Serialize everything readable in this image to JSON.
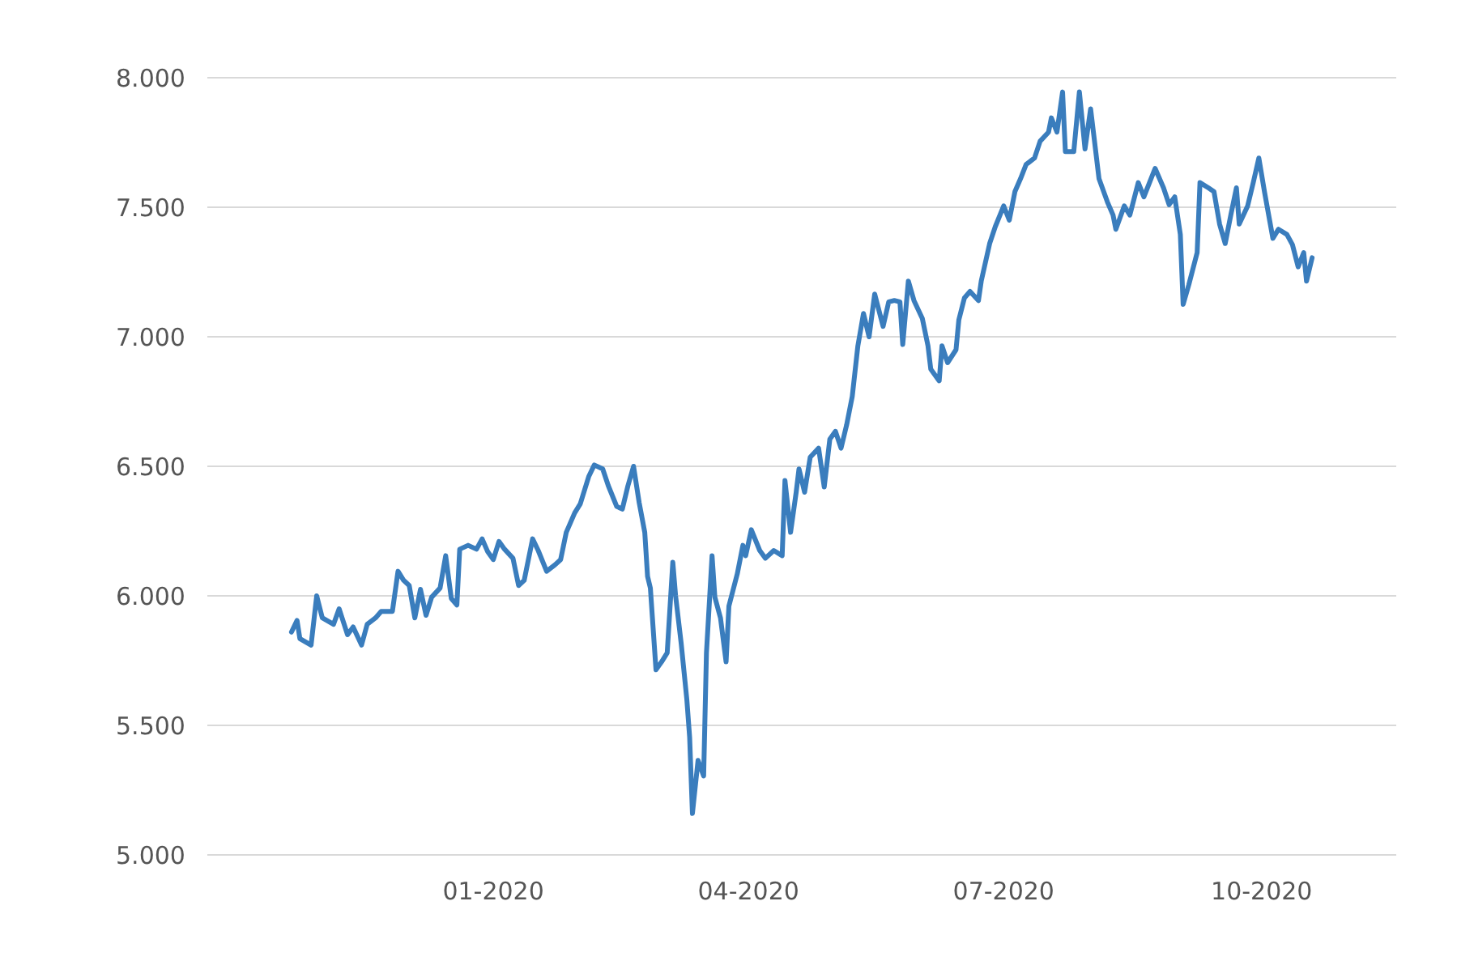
{
  "chart_data": {
    "type": "line",
    "x": [
      "2019-10-21",
      "2019-10-23",
      "2019-10-24",
      "2019-10-28",
      "2019-10-30",
      "2019-11-01",
      "2019-11-05",
      "2019-11-07",
      "2019-11-10",
      "2019-11-12",
      "2019-11-15",
      "2019-11-17",
      "2019-11-20",
      "2019-11-22",
      "2019-11-26",
      "2019-11-28",
      "2019-11-30",
      "2019-12-02",
      "2019-12-04",
      "2019-12-06",
      "2019-12-08",
      "2019-12-10",
      "2019-12-13",
      "2019-12-15",
      "2019-12-17",
      "2019-12-19",
      "2019-12-20",
      "2019-12-23",
      "2019-12-26",
      "2019-12-28",
      "2019-12-30",
      "2020-01-01",
      "2020-01-03",
      "2020-01-05",
      "2020-01-08",
      "2020-01-10",
      "2020-01-12",
      "2020-01-15",
      "2020-01-17",
      "2020-01-20",
      "2020-01-23",
      "2020-01-25",
      "2020-01-27",
      "2020-01-30",
      "2020-02-01",
      "2020-02-04",
      "2020-02-06",
      "2020-02-09",
      "2020-02-11",
      "2020-02-14",
      "2020-02-16",
      "2020-02-18",
      "2020-02-20",
      "2020-02-22",
      "2020-02-24",
      "2020-02-25",
      "2020-02-26",
      "2020-02-28",
      "2020-03-01",
      "2020-03-03",
      "2020-03-05",
      "2020-03-06",
      "2020-03-08",
      "2020-03-10",
      "2020-03-11",
      "2020-03-12",
      "2020-03-14",
      "2020-03-16",
      "2020-03-17",
      "2020-03-19",
      "2020-03-20",
      "2020-03-22",
      "2020-03-24",
      "2020-03-25",
      "2020-03-28",
      "2020-03-30",
      "2020-03-31",
      "2020-04-02",
      "2020-04-05",
      "2020-04-07",
      "2020-04-10",
      "2020-04-13",
      "2020-04-14",
      "2020-04-16",
      "2020-04-18",
      "2020-04-19",
      "2020-04-21",
      "2020-04-23",
      "2020-04-26",
      "2020-04-28",
      "2020-04-30",
      "2020-05-02",
      "2020-05-04",
      "2020-05-06",
      "2020-05-08",
      "2020-05-10",
      "2020-05-12",
      "2020-05-14",
      "2020-05-16",
      "2020-05-19",
      "2020-05-21",
      "2020-05-23",
      "2020-05-25",
      "2020-05-26",
      "2020-05-28",
      "2020-05-30",
      "2020-06-02",
      "2020-06-04",
      "2020-06-05",
      "2020-06-08",
      "2020-06-09",
      "2020-06-11",
      "2020-06-14",
      "2020-06-15",
      "2020-06-17",
      "2020-06-19",
      "2020-06-22",
      "2020-06-23",
      "2020-06-26",
      "2020-06-28",
      "2020-07-01",
      "2020-07-03",
      "2020-07-05",
      "2020-07-07",
      "2020-07-09",
      "2020-07-12",
      "2020-07-14",
      "2020-07-17",
      "2020-07-18",
      "2020-07-20",
      "2020-07-22",
      "2020-07-23",
      "2020-07-26",
      "2020-07-28",
      "2020-07-30",
      "2020-08-01",
      "2020-08-02",
      "2020-08-04",
      "2020-08-07",
      "2020-08-09",
      "2020-08-10",
      "2020-08-13",
      "2020-08-15",
      "2020-08-18",
      "2020-08-20",
      "2020-08-22",
      "2020-08-24",
      "2020-08-27",
      "2020-08-29",
      "2020-08-31",
      "2020-09-02",
      "2020-09-03",
      "2020-09-05",
      "2020-09-08",
      "2020-09-09",
      "2020-09-12",
      "2020-09-14",
      "2020-09-16",
      "2020-09-18",
      "2020-09-20",
      "2020-09-22",
      "2020-09-23",
      "2020-09-26",
      "2020-09-28",
      "2020-09-30",
      "2020-10-02",
      "2020-10-05",
      "2020-10-07",
      "2020-10-10",
      "2020-10-12",
      "2020-10-14",
      "2020-10-16",
      "2020-10-17",
      "2020-10-19"
    ],
    "series": [
      {
        "color": "#3a7dbd",
        "values": [
          5860,
          5905,
          5835,
          5810,
          6000,
          5915,
          5890,
          5950,
          5850,
          5880,
          5810,
          5890,
          5915,
          5940,
          5940,
          6095,
          6060,
          6040,
          5915,
          6025,
          5925,
          5995,
          6030,
          6155,
          5990,
          5965,
          6180,
          6195,
          6180,
          6220,
          6170,
          6140,
          6210,
          6180,
          6145,
          6040,
          6060,
          6220,
          6175,
          6095,
          6120,
          6140,
          6245,
          6320,
          6355,
          6460,
          6505,
          6490,
          6425,
          6345,
          6335,
          6425,
          6500,
          6360,
          6245,
          6075,
          6030,
          5715,
          5745,
          5780,
          6130,
          6000,
          5815,
          5600,
          5455,
          5160,
          5365,
          5305,
          5780,
          6155,
          5995,
          5915,
          5745,
          5960,
          6085,
          6195,
          6155,
          6255,
          6175,
          6145,
          6175,
          6155,
          6445,
          6245,
          6400,
          6490,
          6400,
          6535,
          6570,
          6420,
          6605,
          6635,
          6570,
          6660,
          6770,
          6965,
          7090,
          7000,
          7165,
          7040,
          7135,
          7140,
          7135,
          6970,
          7215,
          7140,
          7070,
          6965,
          6875,
          6830,
          6965,
          6900,
          6950,
          7065,
          7150,
          7175,
          7140,
          7215,
          7360,
          7425,
          7505,
          7450,
          7560,
          7610,
          7665,
          7690,
          7755,
          7790,
          7845,
          7790,
          7945,
          7715,
          7715,
          7945,
          7725,
          7880,
          7790,
          7610,
          7520,
          7470,
          7415,
          7505,
          7470,
          7595,
          7540,
          7595,
          7650,
          7575,
          7510,
          7540,
          7395,
          7125,
          7200,
          7325,
          7595,
          7575,
          7560,
          7435,
          7360,
          7470,
          7575,
          7435,
          7505,
          7595,
          7690,
          7560,
          7380,
          7415,
          7395,
          7355,
          7270,
          7325,
          7215,
          7305
        ]
      }
    ],
    "xlim": [
      "2019-09-21",
      "2020-11-18"
    ],
    "xticks": [
      {
        "value": "2020-01-01",
        "label": "01-2020"
      },
      {
        "value": "2020-04-01",
        "label": "04-2020"
      },
      {
        "value": "2020-07-01",
        "label": "07-2020"
      },
      {
        "value": "2020-10-01",
        "label": "10-2020"
      }
    ],
    "ylim": [
      5000,
      8000
    ],
    "yticks": [
      {
        "value": 5000,
        "label": "5.000"
      },
      {
        "value": 5500,
        "label": "5.500"
      },
      {
        "value": 6000,
        "label": "6.000"
      },
      {
        "value": 6500,
        "label": "6.500"
      },
      {
        "value": 7000,
        "label": "7.000"
      },
      {
        "value": 7500,
        "label": "7.500"
      },
      {
        "value": 8000,
        "label": "8.000"
      }
    ],
    "grid": "y",
    "line_style": "solid",
    "marker": "none"
  }
}
